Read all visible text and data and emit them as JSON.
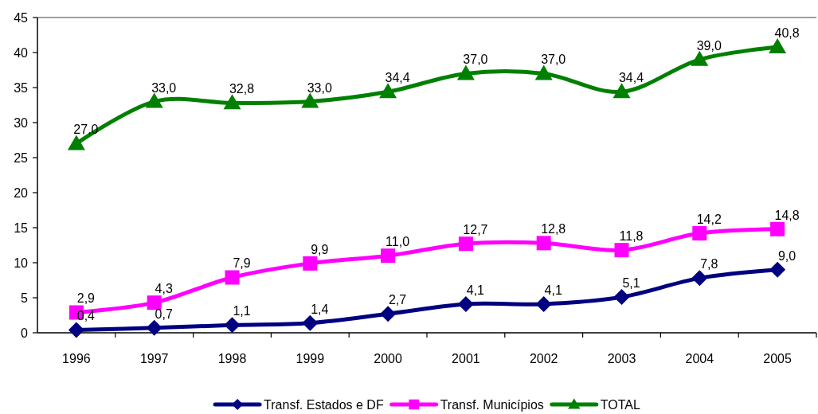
{
  "chart_data": {
    "type": "line",
    "categories": [
      "1996",
      "1997",
      "1998",
      "1999",
      "2000",
      "2001",
      "2002",
      "2003",
      "2004",
      "2005"
    ],
    "series": [
      {
        "name": "Transf. Estados e DF",
        "color": "#000080",
        "marker": "diamond",
        "values": [
          0.4,
          0.7,
          1.1,
          1.4,
          2.7,
          4.1,
          4.1,
          5.1,
          7.8,
          9.0
        ],
        "value_labels": [
          "0,4",
          "0,7",
          "1,1",
          "1,4",
          "2,7",
          "4,1",
          "4,1",
          "5,1",
          "7,8",
          "9,0"
        ]
      },
      {
        "name": "Transf. Municípios",
        "color": "#ff00ff",
        "marker": "square",
        "values": [
          2.9,
          4.3,
          7.9,
          9.9,
          11.0,
          12.7,
          12.8,
          11.8,
          14.2,
          14.8
        ],
        "value_labels": [
          "2,9",
          "4,3",
          "7,9",
          "9,9",
          "11,0",
          "12,7",
          "12,8",
          "11,8",
          "14,2",
          "14,8"
        ]
      },
      {
        "name": "TOTAL",
        "color": "#008000",
        "marker": "triangle",
        "values": [
          27.0,
          33.0,
          32.8,
          33.0,
          34.4,
          37.0,
          37.0,
          34.4,
          39.0,
          40.8
        ],
        "value_labels": [
          "27,0",
          "33,0",
          "32,8",
          "33,0",
          "34,4",
          "37,0",
          "37,0",
          "34,4",
          "39,0",
          "40,8"
        ]
      }
    ],
    "ylim": [
      0,
      45
    ],
    "yticks": [
      0,
      5,
      10,
      15,
      20,
      25,
      30,
      35,
      40,
      45
    ],
    "legend": "bottom"
  }
}
